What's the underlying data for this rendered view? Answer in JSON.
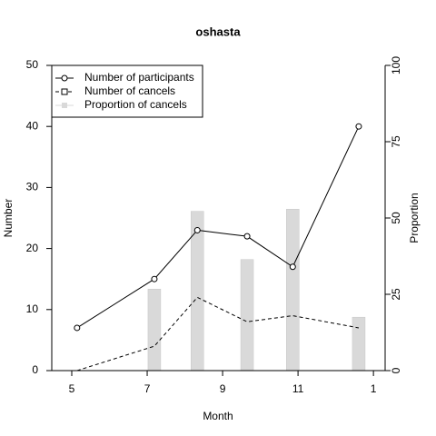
{
  "chart_data": {
    "type": "line",
    "title": "oshasta",
    "x_label": "Month",
    "y_label": "Number",
    "y2_label": "Proportion",
    "x": [
      5.14,
      7.19,
      8.33,
      9.65,
      10.86,
      12.61
    ],
    "xlim": [
      4.47,
      13.31
    ],
    "xticks": [
      5,
      7,
      9,
      11,
      {
        "value": 13,
        "label": "1"
      }
    ],
    "ylim": [
      0,
      50
    ],
    "yticks": [
      0,
      10,
      20,
      30,
      40,
      50
    ],
    "y2lim": [
      0,
      100
    ],
    "y2ticks": [
      0,
      25,
      50,
      75,
      100
    ],
    "legend": "top-left",
    "series": [
      {
        "name": "Number of participants",
        "type": "line",
        "color": "#000000",
        "dash": "solid",
        "marker": "circle",
        "values": [
          7,
          15,
          23,
          22,
          17,
          40
        ]
      },
      {
        "name": "Number of cancels",
        "type": "line",
        "color": "#000000",
        "dash": "dashed",
        "marker": "square",
        "values": [
          0,
          4,
          12,
          8,
          9,
          7
        ]
      },
      {
        "name": "Proportion of cancels",
        "type": "bar",
        "axis": "y2",
        "color": "#d9d9d9",
        "values": [
          0,
          26.7,
          52.2,
          36.4,
          52.9,
          17.5
        ]
      }
    ]
  }
}
